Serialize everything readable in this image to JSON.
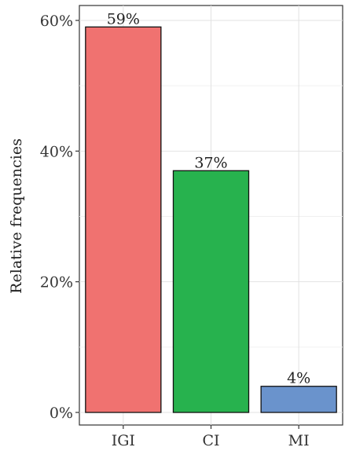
{
  "chart_data": {
    "type": "bar",
    "title": "",
    "xlabel": "",
    "ylabel": "Relative frequencies",
    "categories": [
      "IGI",
      "CI",
      "MI"
    ],
    "values": [
      59,
      37,
      4
    ],
    "data_labels": [
      "59%",
      "37%",
      "4%"
    ],
    "colors": [
      "#f07270",
      "#27b24e",
      "#6a93cc"
    ],
    "ylim": [
      0,
      62
    ],
    "yticks": [
      0,
      20,
      40,
      60
    ],
    "ytick_labels": [
      "0%",
      "20%",
      "40%",
      "60%"
    ],
    "grid": true,
    "legend": "none"
  }
}
